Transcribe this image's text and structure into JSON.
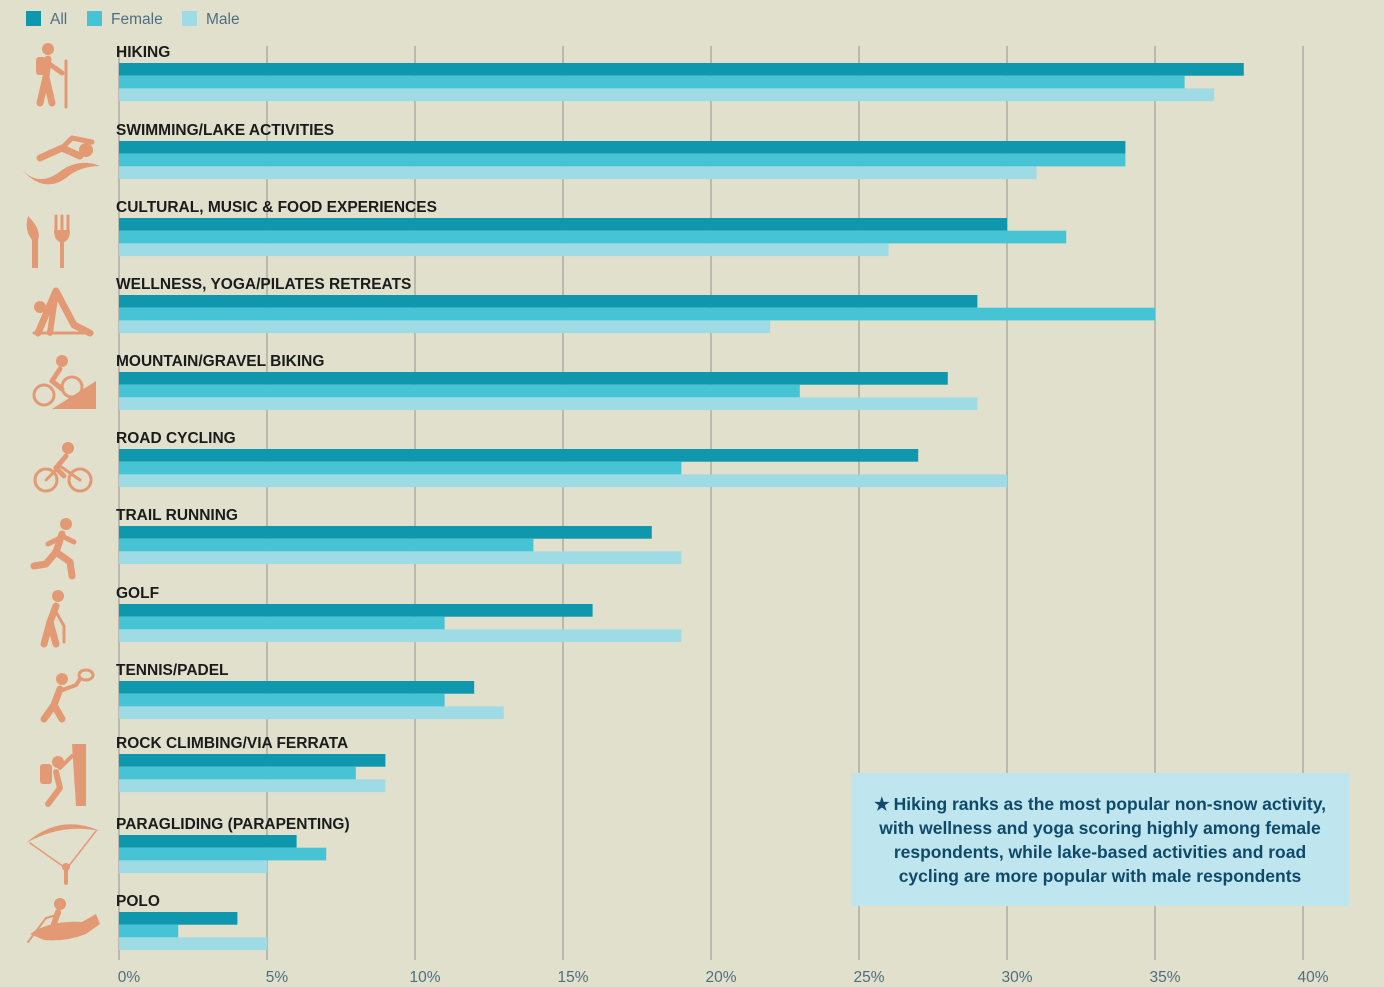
{
  "legend": [
    {
      "label": "All",
      "color": "#0e97ad"
    },
    {
      "label": "Female",
      "color": "#46c3d4"
    },
    {
      "label": "Male",
      "color": "#9edbe4"
    }
  ],
  "callout": {
    "star": "★",
    "text": "Hiking ranks as the most popular non-snow activity, with wellness and yoga scoring highly among female respondents, while lake-based activities and road cycling are more popular with male respondents"
  },
  "chart_data": {
    "type": "bar",
    "orientation": "horizontal",
    "categories": [
      "HIKING",
      "SWIMMING/LAKE ACTIVITIES",
      "CULTURAL, MUSIC & FOOD EXPERIENCES",
      "WELLNESS, YOGA/PILATES RETREATS",
      "MOUNTAIN/GRAVEL BIKING",
      "ROAD CYCLING",
      "TRAIL RUNNING",
      "GOLF",
      "TENNIS/PADEL",
      "ROCK CLIMBING/VIA FERRATA",
      "PARAGLIDING (PARAPENTING)",
      "POLO"
    ],
    "icons": [
      "hiker-icon",
      "swimmer-icon",
      "fork-knife-icon",
      "yoga-icon",
      "mountain-bike-icon",
      "road-cycling-icon",
      "runner-icon",
      "golfer-icon",
      "tennis-icon",
      "climber-icon",
      "paraglider-icon",
      "polo-icon"
    ],
    "series": [
      {
        "name": "All",
        "color": "#0e97ad",
        "values": [
          38,
          34,
          30,
          29,
          28,
          27,
          18,
          16,
          12,
          9,
          6,
          4
        ]
      },
      {
        "name": "Female",
        "color": "#46c3d4",
        "values": [
          36,
          34,
          32,
          35,
          23,
          19,
          14,
          11,
          11,
          8,
          7,
          2
        ]
      },
      {
        "name": "Male",
        "color": "#9edbe4",
        "values": [
          37,
          31,
          26,
          22,
          29,
          30,
          19,
          19,
          13,
          9,
          5,
          5
        ]
      }
    ],
    "xlim": [
      0,
      40
    ],
    "ticks": [
      "0%",
      "5%",
      "10%",
      "15%",
      "20%",
      "25%",
      "30%",
      "35%",
      "40%"
    ],
    "grid": true,
    "legend_position": "top-left",
    "icon_color": "#e39a74"
  }
}
